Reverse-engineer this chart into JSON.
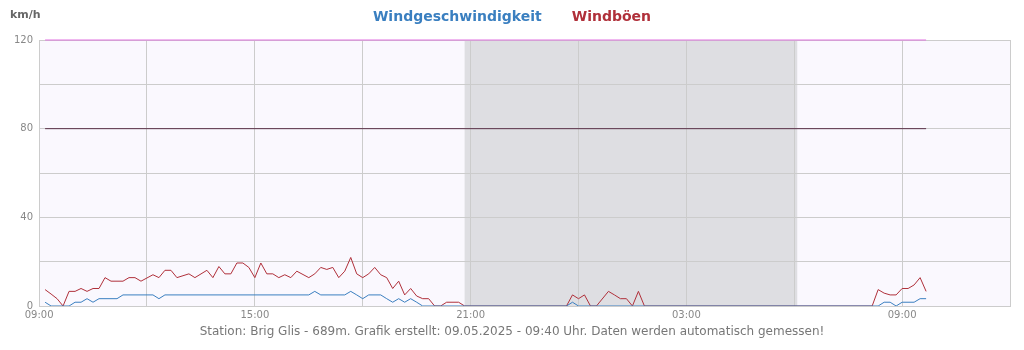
{
  "chart_data": {
    "type": "line",
    "ylabel": "km/h",
    "legend": "top",
    "grid": true,
    "marker": "none",
    "line_style": "solid",
    "xlim": [
      "2025-05-08T09:00",
      "2025-05-09T12:00"
    ],
    "ylim": [
      0,
      120
    ],
    "xticks": [
      {
        "value": "2025-05-08T09:00",
        "label": "09:00"
      },
      {
        "value": "2025-05-08T12:00",
        "label": null
      },
      {
        "value": "2025-05-08T15:00",
        "label": "15:00"
      },
      {
        "value": "2025-05-08T18:00",
        "label": null
      },
      {
        "value": "2025-05-08T21:00",
        "label": "21:00"
      },
      {
        "value": "2025-05-09T00:00",
        "label": null
      },
      {
        "value": "2025-05-09T03:00",
        "label": "03:00"
      },
      {
        "value": "2025-05-09T06:00",
        "label": null
      },
      {
        "value": "2025-05-09T09:00",
        "label": "09:00"
      },
      {
        "value": "2025-05-09T12:00",
        "label": null
      }
    ],
    "yticks": [
      0,
      {
        "value": 20,
        "label": null
      },
      40,
      {
        "value": 60,
        "label": null
      },
      80,
      {
        "value": 100,
        "label": null
      },
      120
    ],
    "bands": [
      {
        "axis": "x",
        "from": "2025-05-08T20:50",
        "to": "2025-05-09T06:05",
        "color": "#dedee2"
      }
    ],
    "ref_lines": [
      {
        "axis": "y",
        "value": 80,
        "color": "#5a3048"
      },
      {
        "axis": "y",
        "value": 120,
        "color": "#e070e0"
      }
    ],
    "annotations": [
      "Station: Brig Glis - 689m. Grafik erstellt: 09.05.2025 - 09:40 Uhr. Daten werden automatisch gemessen!"
    ],
    "series": [
      {
        "name": "Windgeschwindigkeit",
        "color": "#3a7fc0",
        "x": [
          "2025-05-08T09:10",
          "2025-05-08T09:20",
          "2025-05-08T09:50",
          "2025-05-08T10:00",
          "2025-05-08T10:10",
          "2025-05-08T10:20",
          "2025-05-08T10:30",
          "2025-05-08T10:40",
          "2025-05-08T11:10",
          "2025-05-08T11:20",
          "2025-05-08T12:10",
          "2025-05-08T12:20",
          "2025-05-08T12:30",
          "2025-05-08T16:30",
          "2025-05-08T16:40",
          "2025-05-08T16:50",
          "2025-05-08T17:30",
          "2025-05-08T17:40",
          "2025-05-08T17:50",
          "2025-05-08T18:00",
          "2025-05-08T18:10",
          "2025-05-08T18:30",
          "2025-05-08T18:40",
          "2025-05-08T18:50",
          "2025-05-08T19:00",
          "2025-05-08T19:10",
          "2025-05-08T19:20",
          "2025-05-08T19:30",
          "2025-05-08T19:40",
          "2025-05-08T23:40",
          "2025-05-08T23:50",
          "2025-05-09T00:00",
          "2025-05-09T08:20",
          "2025-05-09T08:30",
          "2025-05-09T08:40",
          "2025-05-09T08:50",
          "2025-05-09T09:00",
          "2025-05-09T09:20",
          "2025-05-09T09:30",
          "2025-05-09T09:40"
        ],
        "values": [
          1.7,
          0,
          0,
          1.7,
          1.7,
          3.3,
          1.7,
          3.3,
          3.3,
          5.0,
          5.0,
          3.3,
          5.0,
          5.0,
          6.6,
          5.0,
          5.0,
          6.6,
          5.0,
          3.3,
          5.0,
          5.0,
          3.3,
          1.7,
          3.3,
          1.7,
          3.3,
          1.7,
          0,
          0,
          1.7,
          0,
          0,
          1.7,
          1.7,
          0,
          1.7,
          1.7,
          3.3,
          3.3
        ]
      },
      {
        "name": "Windböen",
        "color": "#b0303a",
        "x": [
          "2025-05-08T09:10",
          "2025-05-08T09:20",
          "2025-05-08T09:30",
          "2025-05-08T09:40",
          "2025-05-08T09:50",
          "2025-05-08T10:00",
          "2025-05-08T10:10",
          "2025-05-08T10:20",
          "2025-05-08T10:30",
          "2025-05-08T10:40",
          "2025-05-08T10:50",
          "2025-05-08T11:00",
          "2025-05-08T11:20",
          "2025-05-08T11:30",
          "2025-05-08T11:40",
          "2025-05-08T11:50",
          "2025-05-08T12:10",
          "2025-05-08T12:20",
          "2025-05-08T12:30",
          "2025-05-08T12:40",
          "2025-05-08T12:50",
          "2025-05-08T13:10",
          "2025-05-08T13:20",
          "2025-05-08T13:40",
          "2025-05-08T13:50",
          "2025-05-08T14:00",
          "2025-05-08T14:10",
          "2025-05-08T14:20",
          "2025-05-08T14:30",
          "2025-05-08T14:40",
          "2025-05-08T14:50",
          "2025-05-08T15:00",
          "2025-05-08T15:10",
          "2025-05-08T15:20",
          "2025-05-08T15:30",
          "2025-05-08T15:40",
          "2025-05-08T15:50",
          "2025-05-08T16:00",
          "2025-05-08T16:10",
          "2025-05-08T16:30",
          "2025-05-08T16:40",
          "2025-05-08T16:50",
          "2025-05-08T17:00",
          "2025-05-08T17:10",
          "2025-05-08T17:20",
          "2025-05-08T17:30",
          "2025-05-08T17:40",
          "2025-05-08T17:50",
          "2025-05-08T18:00",
          "2025-05-08T18:10",
          "2025-05-08T18:20",
          "2025-05-08T18:30",
          "2025-05-08T18:40",
          "2025-05-08T18:50",
          "2025-05-08T19:00",
          "2025-05-08T19:10",
          "2025-05-08T19:20",
          "2025-05-08T19:30",
          "2025-05-08T19:40",
          "2025-05-08T19:50",
          "2025-05-08T20:00",
          "2025-05-08T20:10",
          "2025-05-08T20:20",
          "2025-05-08T20:40",
          "2025-05-08T20:50",
          "2025-05-08T23:40",
          "2025-05-08T23:50",
          "2025-05-09T00:00",
          "2025-05-09T00:10",
          "2025-05-09T00:20",
          "2025-05-09T00:30",
          "2025-05-09T00:50",
          "2025-05-09T01:00",
          "2025-05-09T01:10",
          "2025-05-09T01:20",
          "2025-05-09T01:30",
          "2025-05-09T01:40",
          "2025-05-09T01:50",
          "2025-05-09T08:10",
          "2025-05-09T08:20",
          "2025-05-09T08:30",
          "2025-05-09T08:40",
          "2025-05-09T08:50",
          "2025-05-09T09:00",
          "2025-05-09T09:10",
          "2025-05-09T09:20",
          "2025-05-09T09:30",
          "2025-05-09T09:40"
        ],
        "values": [
          7.4,
          5.4,
          3.3,
          0,
          6.6,
          6.6,
          7.9,
          6.6,
          7.9,
          7.9,
          12.8,
          11.2,
          11.2,
          12.8,
          12.8,
          11.2,
          14.1,
          12.8,
          16.1,
          16.1,
          12.8,
          14.5,
          12.8,
          16.1,
          12.8,
          17.8,
          14.5,
          14.5,
          19.4,
          19.4,
          17.4,
          12.8,
          19.4,
          14.5,
          14.5,
          12.8,
          14.1,
          12.8,
          15.7,
          12.8,
          14.5,
          17.4,
          16.5,
          17.4,
          12.8,
          15.7,
          21.9,
          14.5,
          12.8,
          14.5,
          17.4,
          14.1,
          12.8,
          7.9,
          11.2,
          5.0,
          7.9,
          4.5,
          3.3,
          3.3,
          0,
          0,
          1.7,
          1.7,
          0,
          0,
          5.0,
          3.3,
          5.0,
          0,
          0,
          6.6,
          5.0,
          3.3,
          3.3,
          0,
          6.6,
          0,
          0,
          7.4,
          5.8,
          5.0,
          5.0,
          7.9,
          7.9,
          9.5,
          12.8,
          6.6
        ]
      }
    ]
  }
}
